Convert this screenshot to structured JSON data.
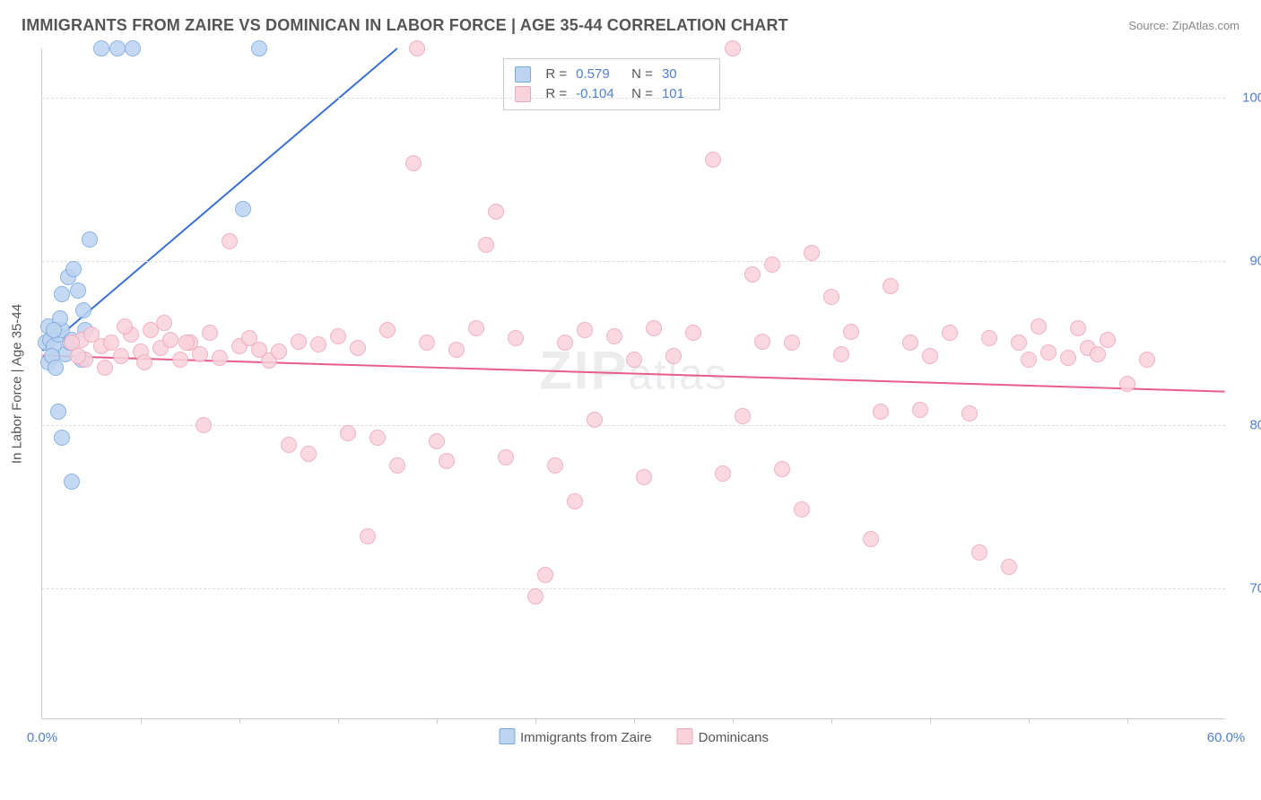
{
  "header": {
    "title": "IMMIGRANTS FROM ZAIRE VS DOMINICAN IN LABOR FORCE | AGE 35-44 CORRELATION CHART",
    "source": "Source: ZipAtlas.com"
  },
  "watermark": {
    "zip": "ZIP",
    "atlas": "atlas"
  },
  "chart": {
    "type": "scatter",
    "ylabel": "In Labor Force | Age 35-44",
    "xlim": [
      0.0,
      60.0
    ],
    "ylim": [
      62.0,
      103.0
    ],
    "xticks": [
      0.0,
      60.0
    ],
    "xtick_labels": [
      "0.0%",
      "60.0%"
    ],
    "xminor_ticks": [
      5,
      10,
      15,
      20,
      25,
      30,
      35,
      40,
      45,
      50,
      55
    ],
    "yticks": [
      70.0,
      80.0,
      90.0,
      100.0
    ],
    "ytick_labels": [
      "70.0%",
      "80.0%",
      "90.0%",
      "100.0%"
    ],
    "grid_color": "#dddddd",
    "axis_color": "#cccccc",
    "tick_label_color": "#5080d0",
    "background_color": "#ffffff",
    "series": [
      {
        "name": "Immigrants from Zaire",
        "color_fill": "#bcd4f0",
        "color_stroke": "#7aa8e0",
        "line_color": "#3a6fd8",
        "r_label": "R =",
        "r_value": "0.579",
        "n_label": "N =",
        "n_value": "30",
        "trend": {
          "x1": 0,
          "y1": 84.5,
          "x2": 18,
          "y2": 103.0
        },
        "points": [
          [
            0.2,
            85.0
          ],
          [
            0.4,
            85.2
          ],
          [
            0.6,
            84.8
          ],
          [
            0.8,
            85.5
          ],
          [
            1.0,
            85.8
          ],
          [
            1.2,
            84.3
          ],
          [
            1.4,
            85.0
          ],
          [
            0.3,
            83.8
          ],
          [
            0.5,
            84.2
          ],
          [
            0.7,
            83.5
          ],
          [
            1.0,
            88.0
          ],
          [
            1.3,
            89.0
          ],
          [
            1.6,
            89.5
          ],
          [
            1.8,
            88.2
          ],
          [
            2.1,
            87.0
          ],
          [
            2.4,
            91.3
          ],
          [
            0.8,
            80.8
          ],
          [
            1.0,
            79.2
          ],
          [
            1.5,
            76.5
          ],
          [
            2.0,
            84.0
          ],
          [
            3.0,
            103.0
          ],
          [
            3.8,
            103.0
          ],
          [
            4.6,
            103.0
          ],
          [
            11.0,
            103.0
          ],
          [
            10.2,
            93.2
          ],
          [
            0.3,
            86.0
          ],
          [
            0.9,
            86.5
          ],
          [
            1.5,
            85.2
          ],
          [
            2.2,
            85.8
          ],
          [
            0.6,
            85.8
          ]
        ]
      },
      {
        "name": "Dominicans",
        "color_fill": "#f9d2dc",
        "color_stroke": "#eea6bb",
        "line_color": "#e85d8a",
        "r_label": "R =",
        "r_value": "-0.104",
        "n_label": "N =",
        "n_value": "101",
        "trend": {
          "x1": 0,
          "y1": 84.2,
          "x2": 60,
          "y2": 82.0
        },
        "points": [
          [
            2.0,
            85.2
          ],
          [
            2.5,
            85.5
          ],
          [
            3.0,
            84.8
          ],
          [
            3.5,
            85.0
          ],
          [
            4.0,
            84.2
          ],
          [
            4.5,
            85.5
          ],
          [
            5.0,
            84.5
          ],
          [
            5.5,
            85.8
          ],
          [
            6.0,
            84.7
          ],
          [
            6.5,
            85.2
          ],
          [
            7.0,
            84.0
          ],
          [
            7.5,
            85.0
          ],
          [
            8.0,
            84.3
          ],
          [
            8.5,
            85.6
          ],
          [
            9.0,
            84.1
          ],
          [
            9.5,
            91.2
          ],
          [
            10.0,
            84.8
          ],
          [
            10.5,
            85.3
          ],
          [
            11.0,
            84.6
          ],
          [
            11.5,
            83.9
          ],
          [
            12.0,
            84.5
          ],
          [
            12.5,
            78.8
          ],
          [
            13.0,
            85.1
          ],
          [
            13.5,
            78.2
          ],
          [
            14.0,
            84.9
          ],
          [
            15.0,
            85.4
          ],
          [
            15.5,
            79.5
          ],
          [
            16.0,
            84.7
          ],
          [
            16.5,
            73.2
          ],
          [
            17.0,
            79.2
          ],
          [
            17.5,
            85.8
          ],
          [
            18.8,
            96.0
          ],
          [
            18.0,
            77.5
          ],
          [
            19.0,
            103.0
          ],
          [
            19.5,
            85.0
          ],
          [
            20.0,
            79.0
          ],
          [
            20.5,
            77.8
          ],
          [
            21.0,
            84.6
          ],
          [
            22.0,
            85.9
          ],
          [
            22.5,
            91.0
          ],
          [
            23.0,
            93.0
          ],
          [
            23.5,
            78.0
          ],
          [
            24.0,
            85.3
          ],
          [
            25.0,
            69.5
          ],
          [
            25.5,
            70.8
          ],
          [
            26.0,
            77.5
          ],
          [
            26.5,
            85.0
          ],
          [
            27.0,
            75.3
          ],
          [
            27.5,
            85.8
          ],
          [
            28.0,
            80.3
          ],
          [
            29.0,
            85.4
          ],
          [
            30.0,
            84.0
          ],
          [
            30.5,
            76.8
          ],
          [
            31.0,
            85.9
          ],
          [
            32.0,
            84.2
          ],
          [
            33.0,
            85.6
          ],
          [
            34.0,
            96.2
          ],
          [
            34.5,
            77.0
          ],
          [
            35.0,
            103.0
          ],
          [
            35.5,
            80.5
          ],
          [
            36.0,
            89.2
          ],
          [
            36.5,
            85.1
          ],
          [
            37.0,
            89.8
          ],
          [
            37.5,
            77.3
          ],
          [
            38.0,
            85.0
          ],
          [
            38.5,
            74.8
          ],
          [
            39.0,
            90.5
          ],
          [
            40.0,
            87.8
          ],
          [
            40.5,
            84.3
          ],
          [
            41.0,
            85.7
          ],
          [
            42.0,
            73.0
          ],
          [
            42.5,
            80.8
          ],
          [
            43.0,
            88.5
          ],
          [
            44.0,
            85.0
          ],
          [
            44.5,
            80.9
          ],
          [
            45.0,
            84.2
          ],
          [
            46.0,
            85.6
          ],
          [
            47.0,
            80.7
          ],
          [
            47.5,
            72.2
          ],
          [
            48.0,
            85.3
          ],
          [
            49.0,
            71.3
          ],
          [
            49.5,
            85.0
          ],
          [
            50.0,
            84.0
          ],
          [
            50.5,
            86.0
          ],
          [
            51.0,
            84.4
          ],
          [
            52.0,
            84.1
          ],
          [
            52.5,
            85.9
          ],
          [
            53.0,
            84.7
          ],
          [
            53.5,
            84.3
          ],
          [
            54.0,
            85.2
          ],
          [
            55.0,
            82.5
          ],
          [
            56.0,
            84.0
          ],
          [
            2.2,
            84.0
          ],
          [
            3.2,
            83.5
          ],
          [
            4.2,
            86.0
          ],
          [
            5.2,
            83.8
          ],
          [
            6.2,
            86.2
          ],
          [
            7.3,
            85.0
          ],
          [
            8.2,
            80.0
          ],
          [
            1.5,
            85.0
          ],
          [
            1.8,
            84.2
          ]
        ]
      }
    ],
    "legend_bottom": [
      {
        "label": "Immigrants from Zaire",
        "fill": "#bcd4f0",
        "stroke": "#7aa8e0"
      },
      {
        "label": "Dominicans",
        "fill": "#f9d2dc",
        "stroke": "#eea6bb"
      }
    ],
    "stats_box": {
      "left_pct": 39.0,
      "top_pct": 1.5
    }
  }
}
